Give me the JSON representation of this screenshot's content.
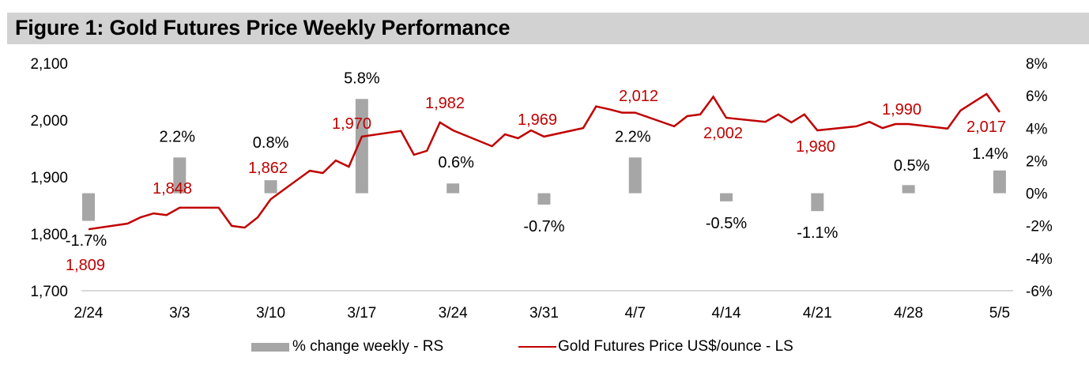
{
  "title": "Figure 1: Gold Futures Price Weekly Performance",
  "colors": {
    "line": "#c00000",
    "bar": "#a6a6a6",
    "title_bg": "#d2d2d2",
    "axis": "#d9d9d9"
  },
  "chart_data": {
    "type": "bar+line",
    "title": "Figure 1: Gold Futures Price Weekly Performance",
    "xlabel": "",
    "ylabel_left": "",
    "ylabel_right": "",
    "grid": false,
    "legend_position": "bottom",
    "x_ticks": [
      "2/24",
      "3/3",
      "3/10",
      "3/17",
      "3/24",
      "3/31",
      "4/7",
      "4/14",
      "4/21",
      "4/28",
      "5/5"
    ],
    "left_axis": {
      "ylim": [
        1700,
        2100
      ],
      "ticks": [
        1700,
        1800,
        1900,
        2000,
        2100
      ],
      "tick_labels": [
        "1,700",
        "1,800",
        "1,900",
        "2,000",
        "2,100"
      ]
    },
    "right_axis": {
      "ylim": [
        -6,
        8
      ],
      "ticks": [
        -6,
        -4,
        -2,
        0,
        2,
        4,
        6,
        8
      ],
      "tick_labels": [
        "-6%",
        "-4%",
        "-2%",
        "0%",
        "2%",
        "4%",
        "6%",
        "8%"
      ]
    },
    "series": [
      {
        "name": "% change weekly - RS",
        "type": "bar",
        "axis": "right",
        "categories": [
          "2/24",
          "3/3",
          "3/10",
          "3/17",
          "3/24",
          "3/31",
          "4/7",
          "4/14",
          "4/21",
          "4/28",
          "5/5"
        ],
        "values": [
          -1.7,
          2.2,
          0.8,
          5.8,
          0.6,
          -0.7,
          2.2,
          -0.5,
          -1.1,
          0.5,
          1.4
        ],
        "labels": [
          "-1.7%",
          "2.2%",
          "0.8%",
          "5.8%",
          "0.6%",
          "-0.7%",
          "2.2%",
          "-0.5%",
          "-1.1%",
          "0.5%",
          "1.4%"
        ]
      },
      {
        "name": "Gold Futures Price US$/ounce - LS",
        "type": "line",
        "axis": "left",
        "x_days_from_2_24": [
          0,
          3,
          4,
          5,
          6,
          7,
          10,
          11,
          12,
          13,
          14,
          17,
          18,
          19,
          20,
          21,
          24,
          25,
          26,
          27,
          28,
          31,
          32,
          33,
          34,
          35,
          38,
          39,
          40,
          41,
          42,
          45,
          46,
          47,
          48,
          49,
          52,
          53,
          54,
          55,
          56,
          59,
          60,
          61,
          62,
          63,
          66,
          67,
          69,
          70
        ],
        "values": [
          1808,
          1818,
          1829,
          1836,
          1833,
          1846,
          1846,
          1814,
          1811,
          1829,
          1861,
          1911,
          1907,
          1929,
          1918,
          1971,
          1981,
          1939,
          1946,
          1996,
          1982,
          1954,
          1975,
          1968,
          1982,
          1971,
          1986,
          2024,
          2019,
          2013,
          2013,
          1989,
          2007,
          2010,
          2041,
          2004,
          1997,
          2010,
          1996,
          2010,
          1982,
          1989,
          1997,
          1986,
          1993,
          1993,
          1985,
          2017,
          2046,
          2014
        ]
      }
    ],
    "price_annotations": [
      {
        "label": "1,809",
        "week": "2/24"
      },
      {
        "label": "1,848",
        "week": "3/3"
      },
      {
        "label": "1,862",
        "week": "3/10"
      },
      {
        "label": "1,970",
        "week": "3/17"
      },
      {
        "label": "1,982",
        "week": "3/24"
      },
      {
        "label": "1,969",
        "week": "3/31"
      },
      {
        "label": "2,012",
        "week": "4/7"
      },
      {
        "label": "2,002",
        "week": "4/14"
      },
      {
        "label": "1,980",
        "week": "4/21"
      },
      {
        "label": "1,990",
        "week": "4/28"
      },
      {
        "label": "2,017",
        "week": "5/5"
      }
    ]
  },
  "legend": {
    "bar_label": "% change weekly - RS",
    "line_label": "Gold Futures Price US$/ounce - LS"
  }
}
